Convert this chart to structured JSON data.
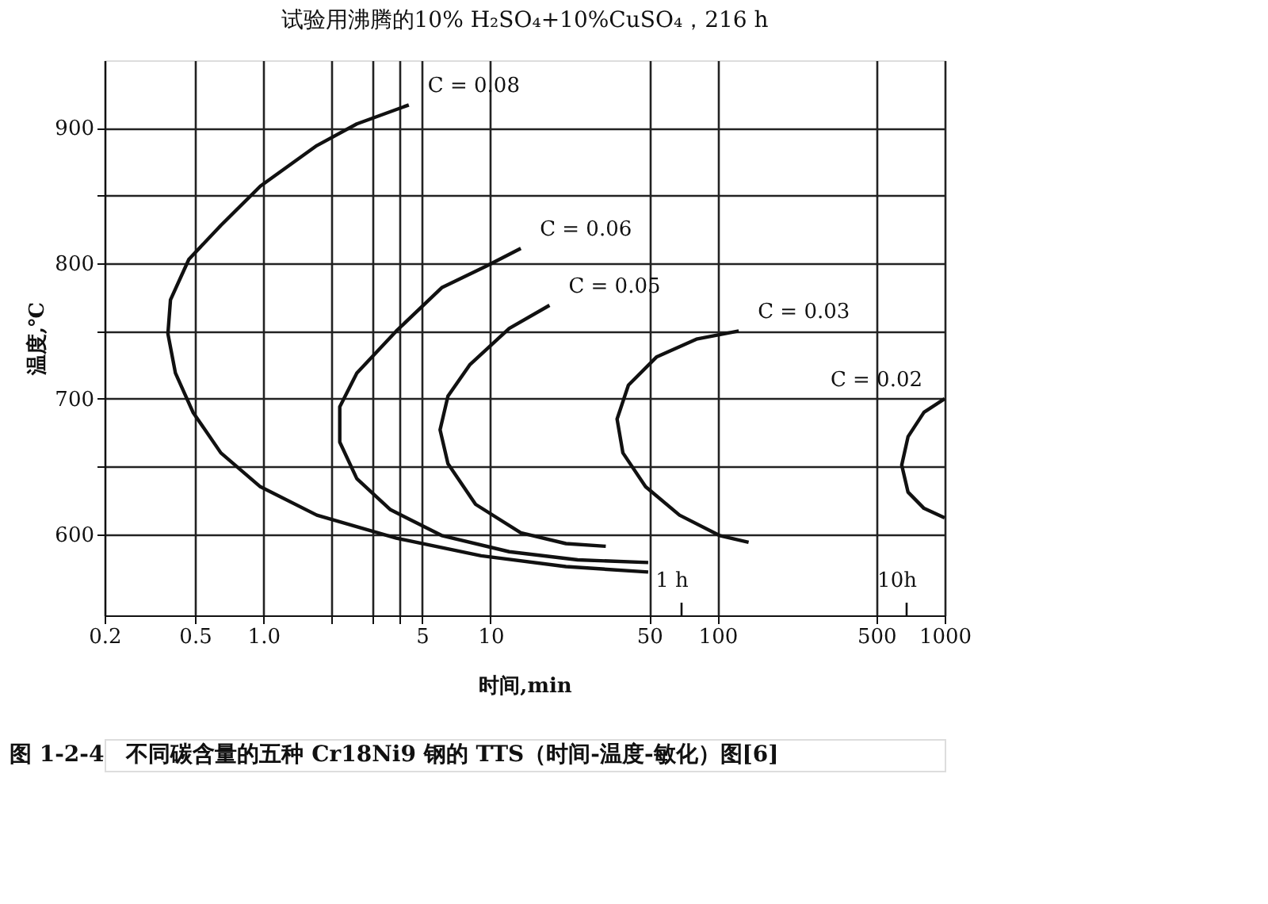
{
  "chart_data": {
    "type": "line",
    "title": "试验用沸腾的10% H₂SO₄+10%CuSO₄，216 h",
    "xlabel": "时间,min",
    "ylabel": "温度,℃",
    "log": "x",
    "grid": true,
    "marker": "none",
    "line_style": "solid",
    "xlim": [
      0.2,
      1000
    ],
    "xticks": [
      0.2,
      0.5,
      {
        "value": 1,
        "label": "1.0"
      },
      {
        "value": 2,
        "label": null
      },
      {
        "value": 3,
        "label": null
      },
      {
        "value": 4,
        "label": null
      },
      5,
      10,
      50,
      100,
      500,
      1000
    ],
    "ylim": [
      540,
      950
    ],
    "yticks": [
      600,
      {
        "value": 650,
        "label": null
      },
      700,
      {
        "value": 750,
        "label": null
      },
      800,
      {
        "value": 850,
        "label": null
      },
      900
    ],
    "series": [
      {
        "name": "C = 0.08",
        "color": "#111111",
        "x": [
          4.37,
          2.58,
          1.72,
          0.97,
          0.65,
          0.47,
          0.39,
          0.38,
          0.41,
          0.49,
          0.65,
          0.97,
          1.72,
          3.85,
          9.1,
          21.5,
          49.5
        ],
        "values": [
          917,
          903,
          887,
          857,
          828,
          803,
          773,
          748,
          719,
          690,
          660,
          635,
          614,
          597,
          584,
          576,
          572
        ]
      },
      {
        "name": "C = 0.06",
        "color": "#111111",
        "x": [
          13.6,
          9.6,
          6.1,
          3.85,
          2.58,
          2.17,
          2.17,
          2.58,
          3.63,
          6.1,
          12.1,
          24.2,
          49.5
        ],
        "values": [
          811,
          798,
          782,
          750,
          719,
          694,
          668,
          641,
          618,
          599,
          587,
          581,
          579
        ]
      },
      {
        "name": "C = 0.05",
        "color": "#111111",
        "x": [
          18.2,
          12.1,
          8.1,
          6.5,
          6.0,
          6.5,
          8.6,
          13.6,
          21.5,
          32.2
        ],
        "values": [
          769,
          752,
          725,
          702,
          677,
          652,
          622,
          601,
          593,
          591
        ]
      },
      {
        "name": "C = 0.03",
        "color": "#111111",
        "x": [
          124,
          80.7,
          54,
          40.5,
          36.1,
          38.3,
          48.2,
          68,
          102,
          137
        ],
        "values": [
          750,
          744,
          731,
          710,
          685,
          660,
          635,
          614,
          599,
          594
        ]
      },
      {
        "name": "C = 0.02",
        "color": "#111111",
        "x": [
          1000,
          811,
          690,
          647,
          690,
          811,
          1000
        ],
        "values": [
          700,
          690,
          672,
          651,
          631,
          619,
          612
        ]
      }
    ],
    "annotations": [
      "1 h",
      "10h",
      "图 1-2-4　不同碳含量的五种 Cr18Ni9 钢的 TTS（时间-温度-敏化）图[6]"
    ]
  }
}
